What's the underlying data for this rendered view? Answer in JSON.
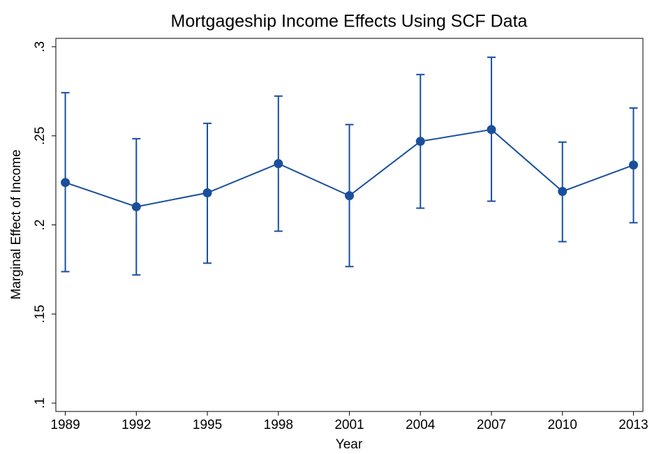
{
  "chart_data": {
    "type": "line",
    "title": "Mortgageship Income Effects Using SCF Data",
    "x_label": "Year",
    "y_label": "Marginal Effect of Income",
    "x": [
      1989,
      1992,
      1995,
      1998,
      2001,
      2004,
      2007,
      2010,
      2013
    ],
    "series": [
      {
        "color": "#1a4f9c",
        "values": [
          0.2238,
          0.2102,
          0.218,
          0.2344,
          0.2164,
          0.2469,
          0.2535,
          0.2188,
          0.2336
        ],
        "lower": [
          0.1738,
          0.1719,
          0.1785,
          0.1965,
          0.1766,
          0.2094,
          0.2133,
          0.1906,
          0.2012
        ],
        "upper": [
          0.2742,
          0.2484,
          0.257,
          0.2723,
          0.2563,
          0.2844,
          0.2941,
          0.2465,
          0.2656
        ]
      }
    ],
    "xlim": [
      1988.6,
      2013.4
    ],
    "xticks": [
      1989,
      1992,
      1995,
      1998,
      2001,
      2004,
      2007,
      2010,
      2013
    ],
    "ylim": [
      0.0953,
      0.3047
    ],
    "yticks": [
      {
        "value": 0.1,
        "label": ".1"
      },
      {
        "value": 0.15,
        "label": ".15"
      },
      {
        "value": 0.2,
        "label": ".2"
      },
      {
        "value": 0.25,
        "label": ".25"
      },
      {
        "value": 0.3,
        "label": ".3"
      }
    ]
  }
}
